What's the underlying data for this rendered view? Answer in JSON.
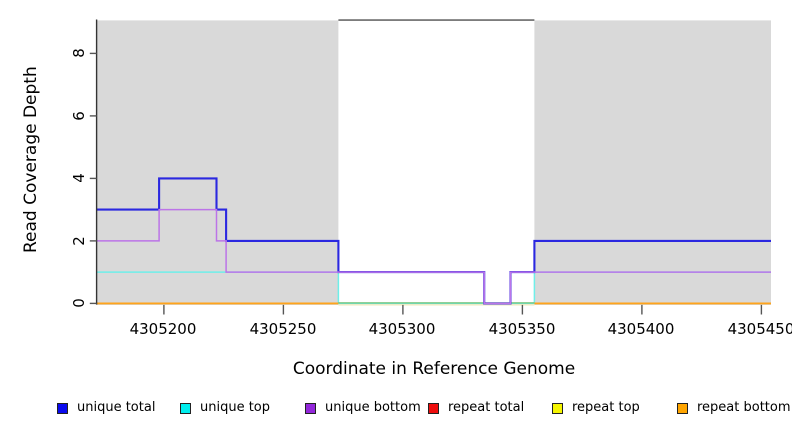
{
  "figure": {
    "y_axis": {
      "label": "Read Coverage Depth",
      "ticks": [
        "0",
        "2",
        "4",
        "6",
        "8"
      ]
    },
    "x_axis": {
      "label": "Coordinate in Reference Genome",
      "ticks": [
        "4305200",
        "4305250",
        "4305300",
        "4305350",
        "4305400",
        "4305450"
      ]
    },
    "legend": [
      {
        "label": "unique total",
        "color": "#0A0AEE"
      },
      {
        "label": "unique top",
        "color": "#00EEEE"
      },
      {
        "label": "unique bottom",
        "color": "#9327DB"
      },
      {
        "label": "repeat total",
        "color": "#EE0D0D"
      },
      {
        "label": "repeat top",
        "color": "#F5F500"
      },
      {
        "label": "repeat bottom",
        "color": "#FFA500"
      }
    ]
  },
  "chart_data": {
    "type": "line",
    "step": true,
    "title": "",
    "xlabel": "Coordinate in Reference Genome",
    "ylabel": "Read Coverage Depth",
    "xlim": [
      4305172,
      4305454
    ],
    "ylim": [
      0,
      9
    ],
    "x_ticks": [
      4305200,
      4305250,
      4305300,
      4305350,
      4305400,
      4305450
    ],
    "y_ticks": [
      0,
      2,
      4,
      6,
      8
    ],
    "grid": false,
    "legend_position": "bottom",
    "shaded_regions": [
      [
        4305172,
        4305273
      ],
      [
        4305355,
        4305454
      ]
    ],
    "x_end": 4305454,
    "series": [
      {
        "name": "unique total",
        "legend_color": "#0A0AEE",
        "line_color": "#2B28E0",
        "width": 2.1,
        "steps": [
          [
            4305172,
            3
          ],
          [
            4305198,
            4
          ],
          [
            4305222,
            3
          ],
          [
            4305226,
            2
          ],
          [
            4305273,
            1
          ],
          [
            4305334,
            0
          ],
          [
            4305345,
            1
          ],
          [
            4305355,
            2
          ]
        ]
      },
      {
        "name": "unique top",
        "legend_color": "#00EEEE",
        "line_color": "#6FEFE9",
        "width": 1.5,
        "steps": [
          [
            4305172,
            1
          ],
          [
            4305273,
            0
          ],
          [
            4305355,
            1
          ]
        ]
      },
      {
        "name": "unique bottom",
        "legend_color": "#9327DB",
        "line_color": "#BC74E8",
        "width": 1.5,
        "steps": [
          [
            4305172,
            2
          ],
          [
            4305198,
            3
          ],
          [
            4305222,
            2
          ],
          [
            4305226,
            1
          ],
          [
            4305334,
            0
          ],
          [
            4305345,
            1
          ]
        ]
      },
      {
        "name": "repeat total",
        "legend_color": "#EE0D0D",
        "line_color": "#EE0D0D",
        "width": 1.3,
        "steps": [
          [
            4305172,
            0
          ]
        ]
      },
      {
        "name": "repeat top",
        "legend_color": "#F5F500",
        "line_color": "#EFE9BE",
        "width": 1.3,
        "steps": [
          [
            4305172,
            0
          ]
        ]
      },
      {
        "name": "repeat bottom",
        "legend_color": "#FFA500",
        "line_color": "#FFA41C",
        "width": 1.9,
        "steps": [
          [
            4305172,
            0
          ]
        ]
      }
    ],
    "render_hints": {
      "shade_color": "#D9D9D9",
      "gap_top_border_color": "#6A6A6A",
      "gap_zero_overlap_green": "#6FBF73",
      "gap_zero_pale_yellow": "#EFE9BE",
      "axis_color": "#333333",
      "tick_color": "#555555"
    }
  }
}
